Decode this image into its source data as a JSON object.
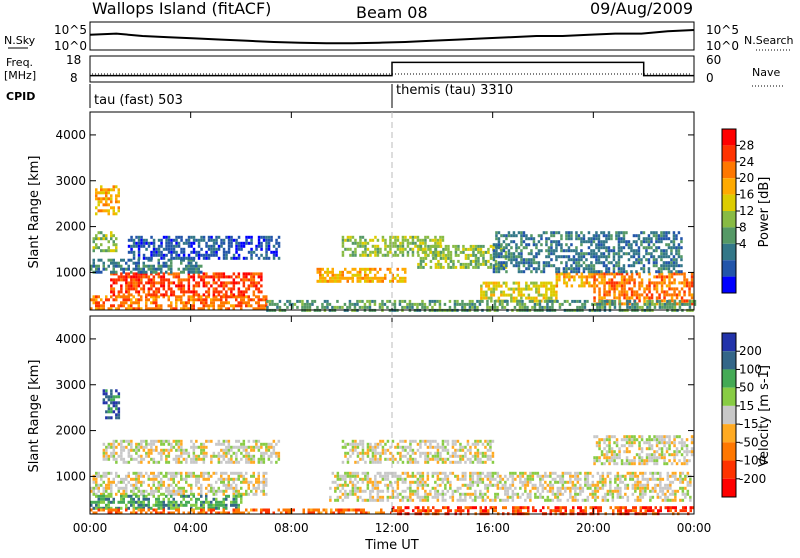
{
  "header": {
    "site": "Wallops Island (fitACF)",
    "beam": "Beam 08",
    "date": "09/Aug/2009"
  },
  "ancillary": {
    "nsky_label": "N.Sky",
    "nsky_ticks": [
      "10^5",
      "10^0"
    ],
    "nsearch_label": "N.Search",
    "nsearch_ticks": [
      "10^5",
      "10^0"
    ],
    "freq_label_line1": "Freq.",
    "freq_label_line2": "[MHz]",
    "freq_ticks": [
      "18",
      "8"
    ],
    "nave_label": "Nave",
    "nave_ticks": [
      "60",
      "0"
    ],
    "cpid_label": "CPID",
    "cpid_modes": [
      {
        "label": "tau (fast) 503",
        "start_hour": 0
      },
      {
        "label": "themis (tau) 3310",
        "start_hour": 12
      }
    ]
  },
  "chart_data": [
    {
      "type": "heatmap",
      "name": "power",
      "ylabel": "Slant Range [km]",
      "xlim": [
        0,
        24
      ],
      "ylim": [
        180,
        4500
      ],
      "y_ticks": [
        "1000",
        "2000",
        "3000",
        "4000"
      ],
      "colorbar": {
        "label": "Power [dB]",
        "ticks": [
          "28",
          "24",
          "20",
          "16",
          "12",
          "8",
          "4"
        ],
        "colors": [
          "#ff0000",
          "#ff3300",
          "#ff7700",
          "#ffaa00",
          "#ddcc00",
          "#88bb44",
          "#559966",
          "#337788",
          "#2255aa",
          "#0000ff"
        ]
      },
      "echo_regions": [
        {
          "t": [
            0.0,
            7.0
          ],
          "r": [
            200,
            500
          ],
          "level": 24
        },
        {
          "t": [
            0.8,
            6.8
          ],
          "r": [
            500,
            1000
          ],
          "level": 26
        },
        {
          "t": [
            0.1,
            1.0
          ],
          "r": [
            1500,
            1900
          ],
          "level": 16
        },
        {
          "t": [
            0.2,
            1.1
          ],
          "r": [
            2300,
            2900
          ],
          "level": 22
        },
        {
          "t": [
            0.0,
            4.5
          ],
          "r": [
            1000,
            1300
          ],
          "level": 10
        },
        {
          "t": [
            1.5,
            7.5
          ],
          "r": [
            1300,
            1800
          ],
          "level": 6
        },
        {
          "t": [
            9.0,
            12.5
          ],
          "r": [
            800,
            1100
          ],
          "level": 22
        },
        {
          "t": [
            10.0,
            14.0
          ],
          "r": [
            1400,
            1800
          ],
          "level": 16
        },
        {
          "t": [
            13.0,
            16.5
          ],
          "r": [
            1100,
            1600
          ],
          "level": 14
        },
        {
          "t": [
            15.5,
            18.5
          ],
          "r": [
            400,
            800
          ],
          "level": 18
        },
        {
          "t": [
            18.5,
            20.0
          ],
          "r": [
            700,
            1000
          ],
          "level": 22
        },
        {
          "t": [
            20.0,
            23.9
          ],
          "r": [
            300,
            1000
          ],
          "level": 24
        },
        {
          "t": [
            16.0,
            23.5
          ],
          "r": [
            1000,
            1900
          ],
          "level": 8
        },
        {
          "t": [
            7.0,
            24.0
          ],
          "r": [
            200,
            400
          ],
          "level": 12
        }
      ]
    },
    {
      "type": "heatmap",
      "name": "velocity",
      "ylabel": "Slant Range [km]",
      "xlabel": "Time UT",
      "xlim": [
        0,
        24
      ],
      "ylim": [
        180,
        4500
      ],
      "y_ticks": [
        "1000",
        "2000",
        "3000",
        "4000"
      ],
      "x_ticks": [
        "00:00",
        "04:00",
        "08:00",
        "12:00",
        "16:00",
        "20:00",
        "00:00"
      ],
      "colorbar": {
        "label": "Velocity [m s-1]",
        "ticks": [
          "200",
          "100",
          "50",
          "15",
          "-15",
          "-50",
          "-100",
          "-200"
        ],
        "colors": [
          "#2233aa",
          "#336688",
          "#44aa55",
          "#88cc44",
          "#c8c8c8",
          "#ffaa22",
          "#ff7700",
          "#ff3300",
          "#ff0000"
        ]
      },
      "echo_regions": [
        {
          "t": [
            0.0,
            7.0
          ],
          "r": [
            600,
            1100
          ],
          "level": 0
        },
        {
          "t": [
            0.5,
            7.5
          ],
          "r": [
            1300,
            1800
          ],
          "level": 0
        },
        {
          "t": [
            0.5,
            1.1
          ],
          "r": [
            2300,
            2900
          ],
          "level": 80
        },
        {
          "t": [
            0.0,
            6.0
          ],
          "r": [
            300,
            600
          ],
          "level": 60
        },
        {
          "t": [
            0.0,
            12.0
          ],
          "r": [
            200,
            300
          ],
          "level": -60
        },
        {
          "t": [
            9.5,
            23.9
          ],
          "r": [
            500,
            1100
          ],
          "level": 0
        },
        {
          "t": [
            10.0,
            16.0
          ],
          "r": [
            1300,
            1800
          ],
          "level": 0
        },
        {
          "t": [
            12.0,
            24.0
          ],
          "r": [
            200,
            350
          ],
          "level": -80
        },
        {
          "t": [
            20.0,
            23.9
          ],
          "r": [
            1300,
            1900
          ],
          "level": 0
        }
      ]
    }
  ],
  "ancillary_series": {
    "nsky": [
      0.55,
      0.6,
      0.5,
      0.45,
      0.4,
      0.35,
      0.3,
      0.25,
      0.22,
      0.2,
      0.2,
      0.22,
      0.25,
      0.3,
      0.35,
      0.4,
      0.45,
      0.5,
      0.5,
      0.55,
      0.6,
      0.6,
      0.7,
      0.75
    ],
    "freq_hours": [
      0,
      12,
      12,
      22,
      22,
      24
    ],
    "freq_levels": [
      0.2,
      0.2,
      0.8,
      0.8,
      0.2,
      0.2
    ]
  }
}
